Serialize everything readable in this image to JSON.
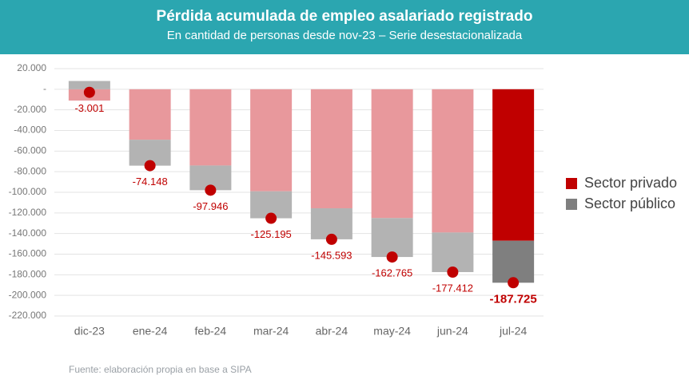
{
  "chart_data": {
    "type": "bar",
    "title": "Pérdida acumulada de empleo asalariado registrado",
    "subtitle": "En cantidad de personas desde nov-23 – Serie desestacionalizada",
    "source": "Fuente: elaboración propia en base a SIPA",
    "categories": [
      "dic-23",
      "ene-24",
      "feb-24",
      "mar-24",
      "abr-24",
      "may-24",
      "jun-24",
      "jul-24"
    ],
    "series": [
      {
        "name": "Sector privado",
        "color": "#e8989c",
        "highlight_color": "#c00000",
        "values": [
          -11000,
          -49000,
          -74000,
          -99000,
          -115500,
          -125000,
          -139000,
          -147000
        ]
      },
      {
        "name": "Sector público",
        "color": "#b3b3b3",
        "highlight_color": "#7f7f7f",
        "values": [
          8000,
          -25148,
          -23946,
          -26195,
          -30093,
          -37765,
          -38412,
          -40725
        ]
      }
    ],
    "highlight_category": "jul-24",
    "totals": [
      -3001,
      -74148,
      -97946,
      -125195,
      -145593,
      -162765,
      -177412,
      -187725
    ],
    "total_labels": [
      "-3.001",
      "-74.148",
      "-97.946",
      "-125.195",
      "-145.593",
      "-162.765",
      "-177.412",
      "-187.725"
    ],
    "total_color": "#c00000",
    "ylim": [
      -220000,
      20000
    ],
    "yticks": [
      {
        "value": 20000,
        "label": "20.000"
      },
      {
        "value": 0,
        "label": "-"
      },
      {
        "value": -20000,
        "label": "-20.000"
      },
      {
        "value": -40000,
        "label": "-40.000"
      },
      {
        "value": -60000,
        "label": "-60.000"
      },
      {
        "value": -80000,
        "label": "-80.000"
      },
      {
        "value": -100000,
        "label": "-100.000"
      },
      {
        "value": -120000,
        "label": "-120.000"
      },
      {
        "value": -140000,
        "label": "-140.000"
      },
      {
        "value": -160000,
        "label": "-160.000"
      },
      {
        "value": -180000,
        "label": "-180.000"
      },
      {
        "value": -200000,
        "label": "-200.000"
      },
      {
        "value": -220000,
        "label": "-220.000"
      }
    ],
    "grid": true,
    "legend_position": "right"
  }
}
